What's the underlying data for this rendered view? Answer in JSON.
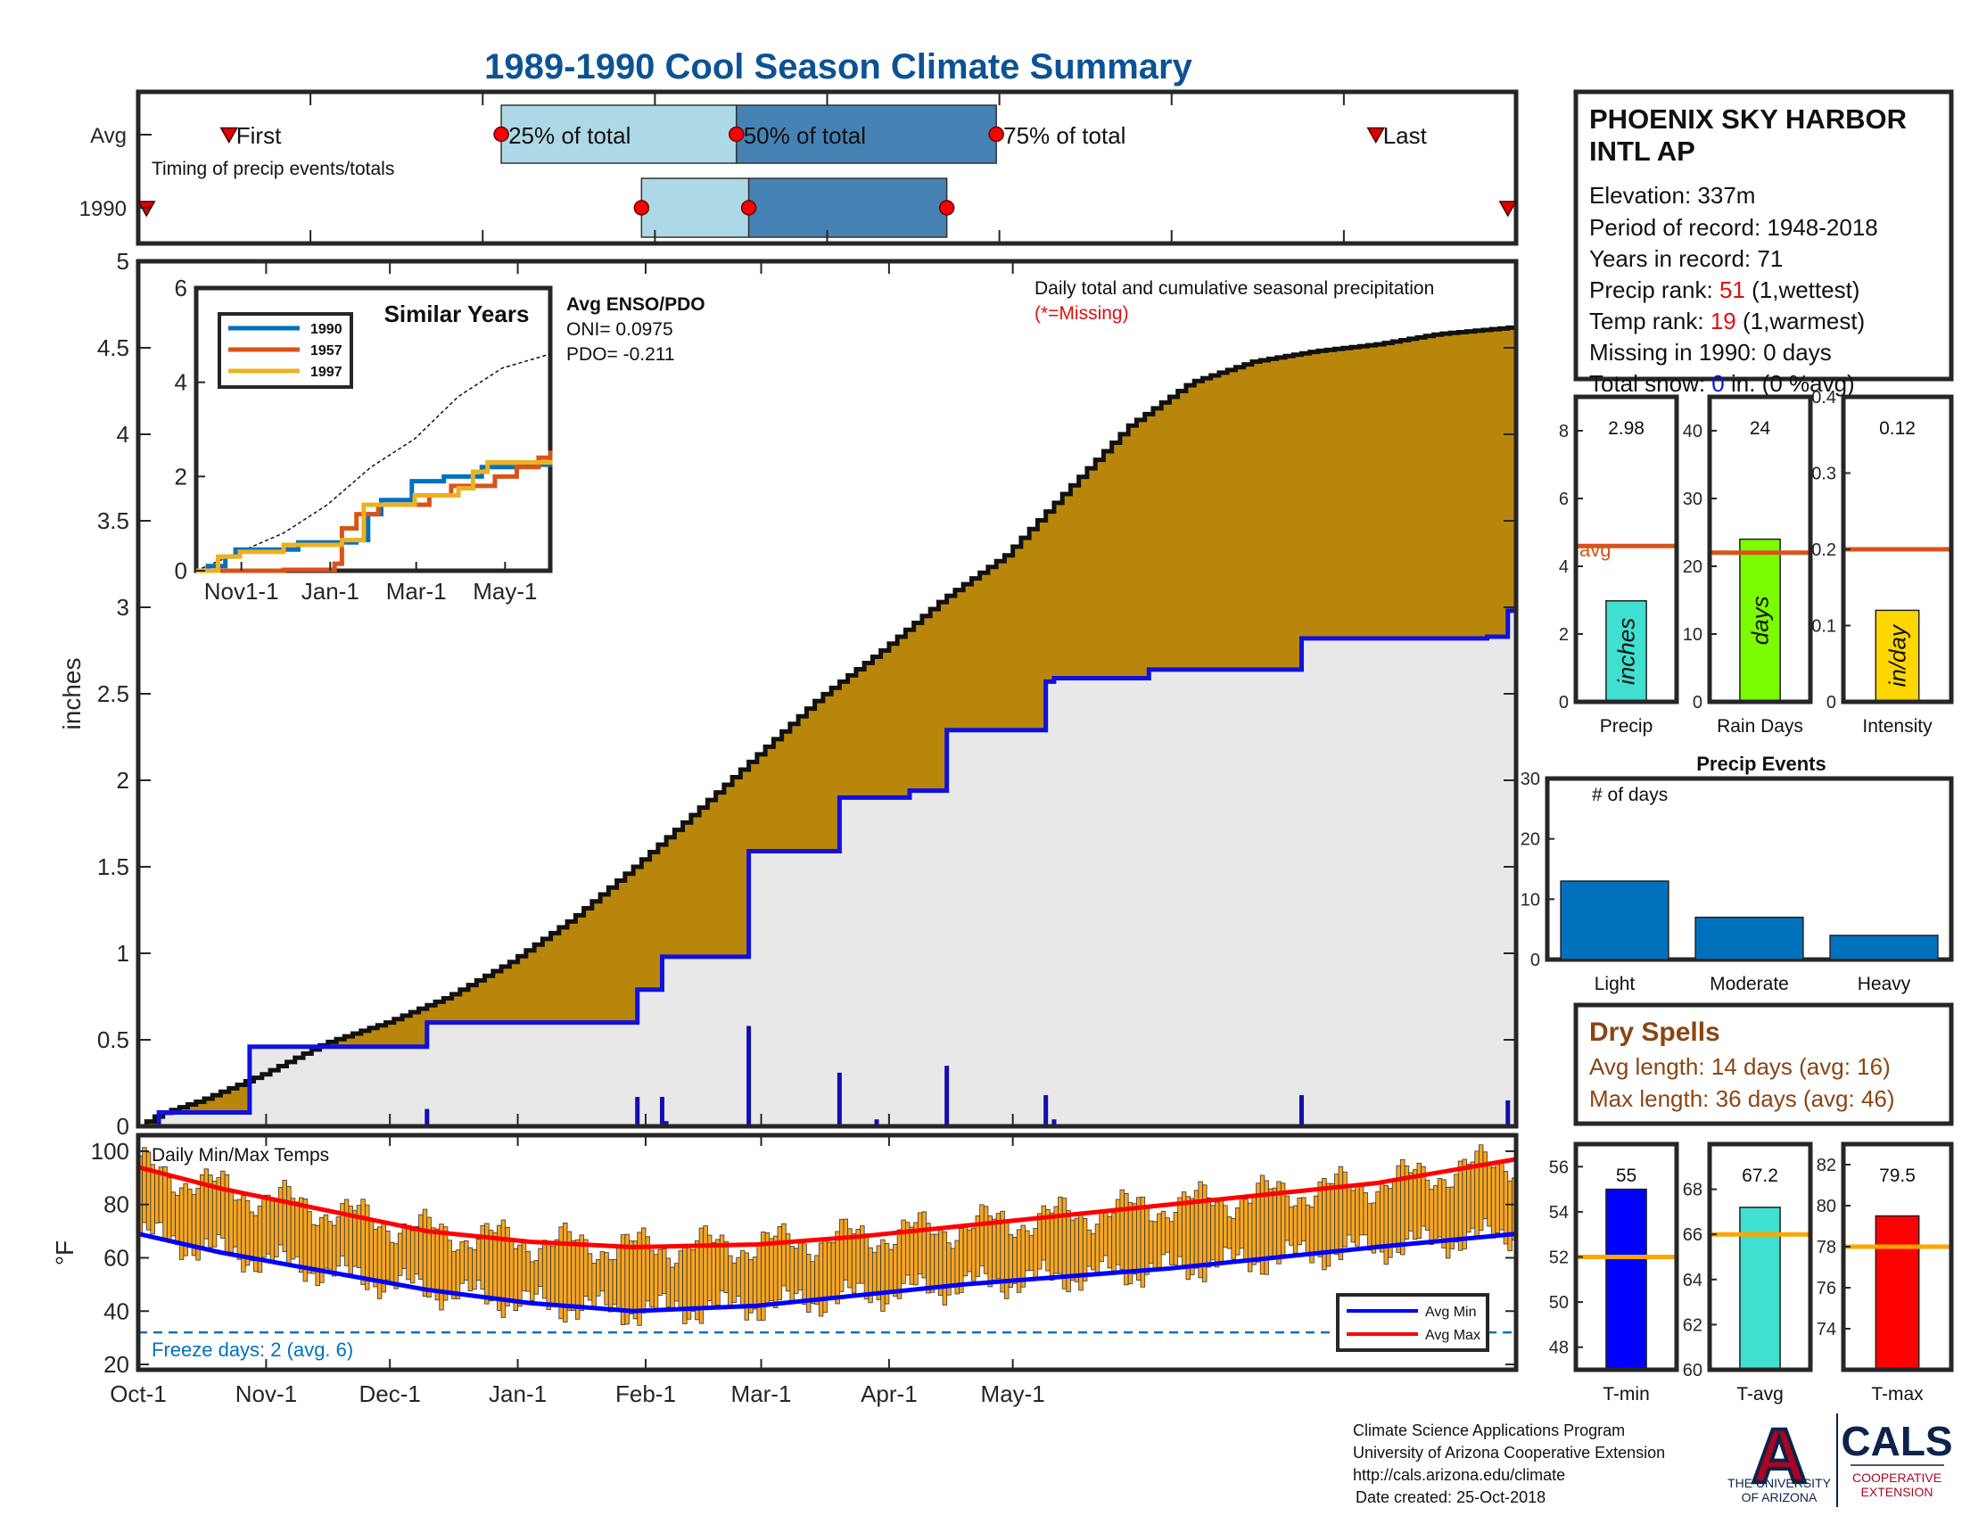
{
  "title": "1989-1990 Cool Season Climate Summary",
  "timing": {
    "rows": [
      "Avg",
      "1990"
    ],
    "caption": "Timing of precip events/totals",
    "avg_labels": {
      "first": "First",
      "p25": "25% of total",
      "p50": "50% of total",
      "p75": "75% of total",
      "last": "Last"
    },
    "avg_days": {
      "first": 22,
      "p25": 88,
      "p50": 145,
      "p75": 208,
      "last": 300
    },
    "year_days": {
      "first": 2,
      "p25": 122,
      "p50": 148,
      "p75": 196,
      "last": 332
    }
  },
  "station": {
    "name_line1": "PHOENIX SKY HARBOR",
    "name_line2": "INTL AP",
    "elevation": "Elevation: 337m",
    "period": "Period of record: 1948-2018",
    "years": "Years in record: 71",
    "precip_rank_label": "Precip rank: ",
    "precip_rank_value": "51",
    "precip_rank_note": " (1,wettest)",
    "temp_rank_label": "Temp rank: ",
    "temp_rank_value": "19",
    "temp_rank_note": " (1,warmest)",
    "missing": "Missing in 1990: 0 days",
    "snow_label": "Total snow: ",
    "snow_value": "0",
    "snow_note": " in. (0 %avg)"
  },
  "chart_data": [
    {
      "id": "main",
      "type": "area",
      "annotation": "Daily total and cumulative seasonal precipitation",
      "missing_note": "(*=Missing)",
      "ylabel": "inches",
      "ylim": [
        0,
        5
      ],
      "yticks": [
        0,
        0.5,
        1,
        1.5,
        2,
        2.5,
        3,
        3.5,
        4,
        4.5,
        5
      ],
      "ytick_labels": [
        "0",
        "0.5",
        "1",
        "1.5",
        "2",
        "2.5",
        "3",
        "3.5",
        "4",
        "4.5",
        "5"
      ],
      "xlim": [
        0,
        334
      ],
      "avg_cumulative": {
        "x": [
          0,
          5,
          15,
          30,
          45,
          60,
          75,
          90,
          105,
          120,
          135,
          150,
          165,
          180,
          195,
          210,
          225,
          240,
          255,
          270,
          285,
          300,
          315,
          334
        ],
        "y": [
          0,
          0.07,
          0.15,
          0.3,
          0.48,
          0.6,
          0.75,
          0.95,
          1.2,
          1.5,
          1.82,
          2.15,
          2.48,
          2.75,
          3.05,
          3.3,
          3.68,
          4.05,
          4.3,
          4.42,
          4.48,
          4.52,
          4.58,
          4.62
        ]
      },
      "year_cumulative": {
        "x": [
          0,
          5,
          27,
          70,
          121,
          127,
          148,
          170,
          187,
          196,
          220,
          222,
          245,
          282,
          327,
          332
        ],
        "y": [
          0,
          0.08,
          0.46,
          0.6,
          0.79,
          0.98,
          1.59,
          1.9,
          1.94,
          2.29,
          2.57,
          2.59,
          2.64,
          2.82,
          2.83,
          2.98
        ]
      },
      "daily": [
        {
          "day": 70,
          "value": 0.1
        },
        {
          "day": 121,
          "value": 0.17
        },
        {
          "day": 127,
          "value": 0.17
        },
        {
          "day": 128,
          "value": 0.03
        },
        {
          "day": 148,
          "value": 0.58
        },
        {
          "day": 170,
          "value": 0.31
        },
        {
          "day": 179,
          "value": 0.04
        },
        {
          "day": 196,
          "value": 0.35
        },
        {
          "day": 220,
          "value": 0.18
        },
        {
          "day": 222,
          "value": 0.04
        },
        {
          "day": 282,
          "value": 0.18
        },
        {
          "day": 332,
          "value": 0.15
        }
      ]
    },
    {
      "id": "similar-years",
      "type": "line",
      "title": "Similar Years",
      "xtick_labels": [
        "Nov1-1",
        "Jan-1",
        "Mar-1",
        "May-1"
      ],
      "xtick_days": [
        31,
        92,
        151,
        212
      ],
      "ytick_labels": [
        "0",
        "2",
        "4",
        "6"
      ],
      "yticks": [
        0,
        2,
        4,
        6
      ],
      "ylim": [
        0,
        6
      ],
      "xlim": [
        0,
        243
      ],
      "series": [
        {
          "name": "1990",
          "color": "#0072BD",
          "x": [
            0,
            8,
            20,
            27,
            70,
            110,
            118,
            127,
            148,
            170,
            187,
            196,
            222,
            243
          ],
          "y": [
            0,
            0.1,
            0.3,
            0.45,
            0.6,
            0.65,
            1.2,
            1.5,
            1.9,
            2.0,
            2.0,
            2.2,
            2.25,
            2.5
          ]
        },
        {
          "name": "1957",
          "color": "#D95319",
          "x": [
            0,
            60,
            95,
            100,
            110,
            125,
            160,
            175,
            205,
            220,
            235,
            243
          ],
          "y": [
            0,
            0.02,
            0.15,
            0.9,
            1.2,
            1.4,
            1.6,
            1.8,
            2.0,
            2.2,
            2.4,
            2.55
          ]
        },
        {
          "name": "1997",
          "color": "#EDB120",
          "x": [
            0,
            15,
            30,
            60,
            100,
            115,
            130,
            150,
            180,
            190,
            200,
            243
          ],
          "y": [
            0,
            0.3,
            0.4,
            0.55,
            0.65,
            1.4,
            1.4,
            1.6,
            1.75,
            2.1,
            2.3,
            2.35
          ]
        }
      ],
      "avg_dashed": {
        "x": [
          0,
          30,
          60,
          90,
          120,
          150,
          180,
          210,
          243
        ],
        "y": [
          0,
          0.4,
          0.8,
          1.4,
          2.2,
          2.8,
          3.7,
          4.3,
          4.6
        ]
      },
      "enso": {
        "title": "Avg ENSO/PDO",
        "oni": "ONI= 0.0975",
        "pdo": "PDO= -0.211"
      }
    },
    {
      "id": "precip-total",
      "type": "bar",
      "categories": [
        "Precip"
      ],
      "values": [
        2.98
      ],
      "value_label": "2.98",
      "bar_label": "inches",
      "avg": 4.6,
      "avg_label": "avg",
      "ylim": [
        0,
        9
      ],
      "yticks": [
        0,
        2,
        4,
        6,
        8
      ],
      "ytick_labels": [
        "0",
        "2",
        "4",
        "6",
        "8"
      ],
      "color": "#40E0D0"
    },
    {
      "id": "rain-days",
      "type": "bar",
      "categories": [
        "Rain Days"
      ],
      "values": [
        24
      ],
      "value_label": "24",
      "bar_label": "days",
      "avg": 22,
      "ylim": [
        0,
        45
      ],
      "yticks": [
        0,
        10,
        20,
        30,
        40
      ],
      "ytick_labels": [
        "0",
        "10",
        "20",
        "30",
        "40"
      ],
      "color": "#7CFC00"
    },
    {
      "id": "intensity",
      "type": "bar",
      "categories": [
        "Intensity"
      ],
      "values": [
        0.12
      ],
      "value_label": "0.12",
      "bar_label": "in/day",
      "avg": 0.2,
      "ylim": [
        0,
        0.4
      ],
      "yticks": [
        0,
        0.1,
        0.2,
        0.3,
        0.4
      ],
      "ytick_labels": [
        "0",
        "0.1",
        "0.2",
        "0.3",
        "0.4"
      ],
      "color": "#FFD700"
    },
    {
      "id": "precip-events",
      "type": "bar",
      "title": "Precip Events",
      "ylabel": "# of days",
      "categories": [
        "Light",
        "Moderate",
        "Heavy"
      ],
      "values": [
        13,
        7,
        4
      ],
      "ylim": [
        0,
        30
      ],
      "yticks": [
        0,
        10,
        20,
        30
      ],
      "ytick_labels": [
        "0",
        "10",
        "20",
        "30"
      ],
      "color": "#0072BD"
    },
    {
      "id": "temps",
      "type": "bar",
      "title": "Daily Min/Max Temps",
      "ylabel": "°F",
      "ylim": [
        18,
        106
      ],
      "yticks": [
        20,
        40,
        60,
        80,
        100
      ],
      "ytick_labels": [
        "20",
        "40",
        "60",
        "80",
        "100"
      ],
      "xlim": [
        0,
        334
      ],
      "xtick_labels": [
        "Oct-1",
        "Nov-1",
        "Dec-1",
        "Jan-1",
        "Feb-1",
        "Mar-1",
        "Apr-1",
        "May-1"
      ],
      "xtick_days": [
        0,
        31,
        61,
        92,
        123,
        151,
        182,
        212
      ],
      "freeze_label": "Freeze days: 2 (avg. 6)",
      "freeze_line": 32,
      "legend": [
        "Avg Min",
        "Avg Max"
      ],
      "avg_min": {
        "x": [
          0,
          20,
          45,
          70,
          95,
          120,
          150,
          175,
          200,
          225,
          250,
          275,
          300,
          334
        ],
        "y": [
          69,
          62,
          55,
          48,
          43,
          40,
          42,
          46,
          50,
          53,
          56,
          60,
          64,
          69
        ]
      },
      "avg_max": {
        "x": [
          0,
          20,
          45,
          70,
          95,
          120,
          150,
          175,
          200,
          225,
          250,
          275,
          300,
          334
        ],
        "y": [
          94,
          86,
          78,
          70,
          66,
          64,
          65,
          68,
          72,
          76,
          80,
          84,
          88,
          97
        ]
      }
    },
    {
      "id": "t-min",
      "type": "bar",
      "categories": [
        "T-min"
      ],
      "values": [
        55
      ],
      "value_label": "55",
      "avg": 52,
      "ylim": [
        47,
        57
      ],
      "yticks": [
        48,
        50,
        52,
        54,
        56
      ],
      "ytick_labels": [
        "48",
        "50",
        "52",
        "54",
        "56"
      ],
      "color": "#0000FF"
    },
    {
      "id": "t-avg",
      "type": "bar",
      "categories": [
        "T-avg"
      ],
      "values": [
        67.2
      ],
      "value_label": "67.2",
      "avg": 66,
      "ylim": [
        60,
        70
      ],
      "yticks": [
        60,
        62,
        64,
        66,
        68
      ],
      "ytick_labels": [
        "60",
        "62",
        "64",
        "66",
        "68"
      ],
      "color": "#40E0D0"
    },
    {
      "id": "t-max",
      "type": "bar",
      "categories": [
        "T-max"
      ],
      "values": [
        79.5
      ],
      "value_label": "79.5",
      "avg": 78,
      "ylim": [
        72,
        83
      ],
      "yticks": [
        74,
        76,
        78,
        80,
        82
      ],
      "ytick_labels": [
        "74",
        "76",
        "78",
        "80",
        "82"
      ],
      "color": "#FF0000"
    }
  ],
  "dry_spells": {
    "title": "Dry Spells",
    "avg": "Avg length: 14 days (avg: 16)",
    "max": "Max length: 36 days (avg: 46)"
  },
  "footer": {
    "line1": "Climate Science Applications Program",
    "line2": "University of Arizona Cooperative Extension",
    "line3": "http://cals.arizona.edu/climate",
    "line4": "Date created: 25-Oct-2018"
  },
  "logos": {
    "ua_mark": "A",
    "ua_text1": "THE UNIVERSITY",
    "ua_text2": "OF ARIZONA",
    "cals": "CALS",
    "cals_sub1": "COOPERATIVE",
    "cals_sub2": "EXTENSION"
  },
  "colors": {
    "title": "#0B5394",
    "avg_fill": "#B8860B",
    "year_fill": "#E8E8E8",
    "year_line": "#1010E0",
    "rank": "#E01010",
    "snow": "#1010E0",
    "avg_line": "#D95319",
    "temp_bar": "#F5A623",
    "temp_avg_line": "#FFA500",
    "light_blue": "#ADD8E6",
    "dark_blue": "#4682B4",
    "dry_brown": "#8B4513",
    "ua_red": "#AB0520",
    "ua_navy": "#0C234B"
  }
}
